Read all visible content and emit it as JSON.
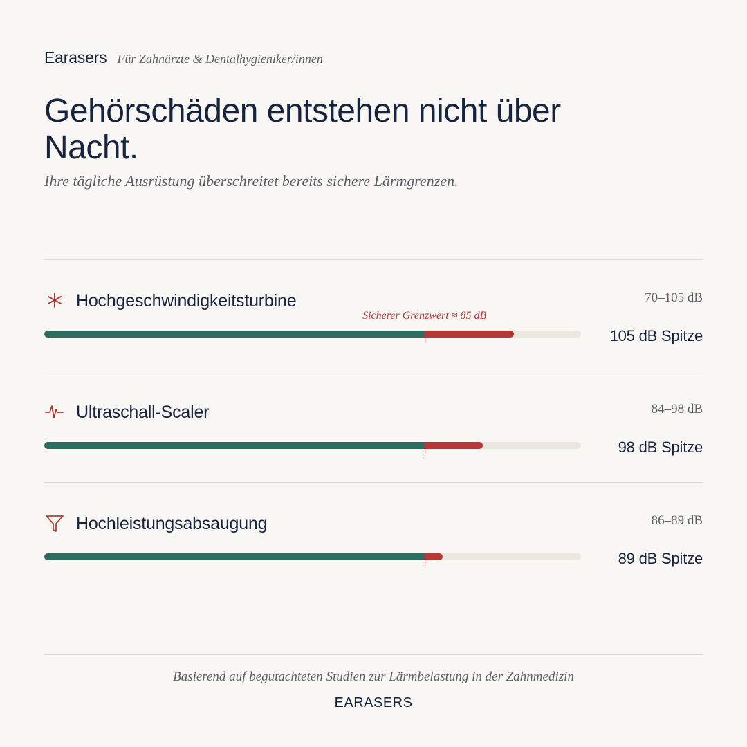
{
  "header": {
    "brand": "Earasers",
    "tagline": "Für Zahnärzte & Dentalhygieniker/innen",
    "headline": "Gehörschäden entstehen nicht über Nacht.",
    "subline": "Ihre tägliche Ausrüstung überschreitet bereits sichere Lärmgrenzen."
  },
  "scale": {
    "min_db": 0,
    "max_db": 120
  },
  "threshold": {
    "value_db": 85,
    "label": "Sicherer Grenzwert ≈ 85 dB"
  },
  "colors": {
    "safe": "#2e6e61",
    "danger": "#b33a36",
    "track": "#ece7de",
    "ink": "#17243f"
  },
  "devices": [
    {
      "icon": "asterisk-icon",
      "name": "Hochgeschwindigkeitsturbine",
      "range": "70–105 dB",
      "peak_db": 105,
      "peak_label": "105 dB Spitze"
    },
    {
      "icon": "pulse-icon",
      "name": "Ultraschall-Scaler",
      "range": "84–98 dB",
      "peak_db": 98,
      "peak_label": "98 dB Spitze"
    },
    {
      "icon": "funnel-icon",
      "name": "Hochleistungsabsaugung",
      "range": "86–89 dB",
      "peak_db": 89,
      "peak_label": "89 dB Spitze"
    }
  ],
  "footer": {
    "note": "Basierend auf begutachteten Studien zur Lärmbelastung in der Zahnmedizin",
    "brand": "EARASERS"
  }
}
